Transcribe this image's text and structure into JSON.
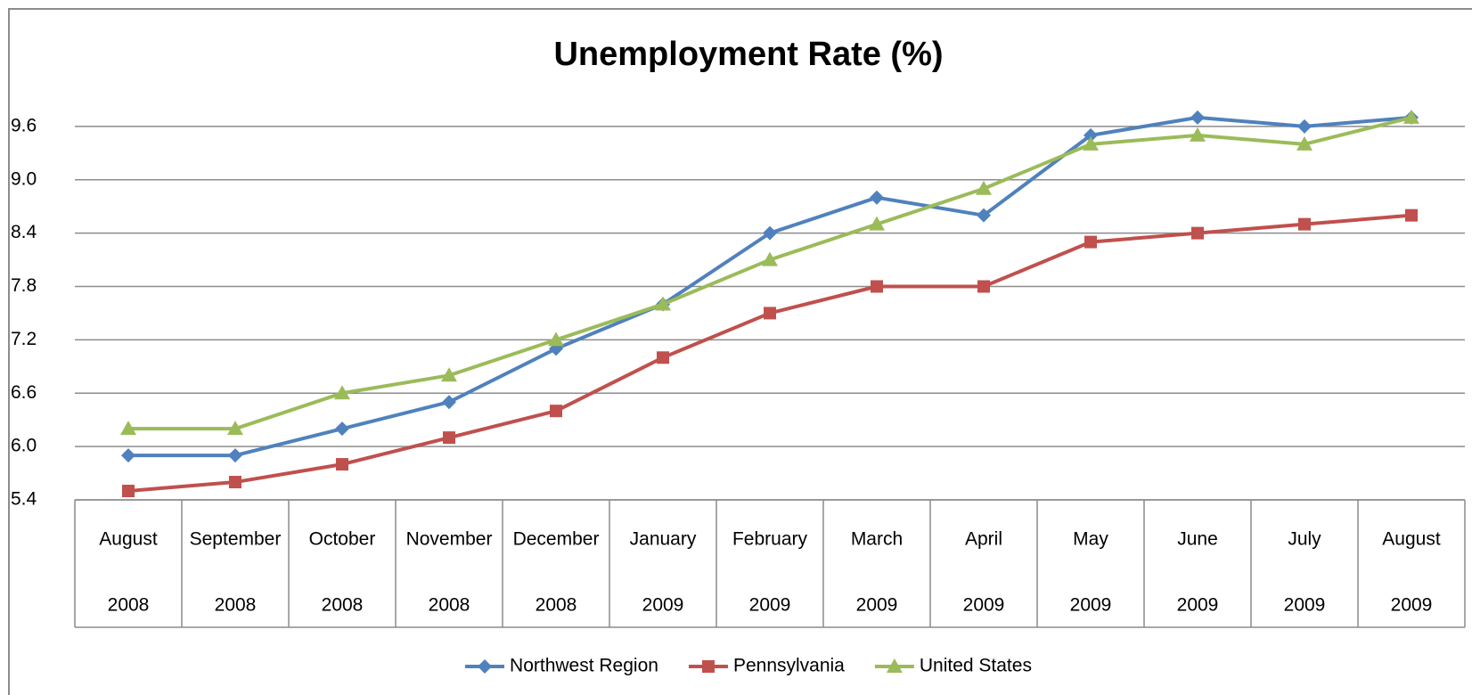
{
  "chart_data": {
    "type": "line",
    "title": "Unemployment Rate (%)",
    "categories": [
      [
        "August",
        "2008"
      ],
      [
        "September",
        "2008"
      ],
      [
        "October",
        "2008"
      ],
      [
        "November",
        "2008"
      ],
      [
        "December",
        "2008"
      ],
      [
        "January",
        "2009"
      ],
      [
        "February",
        "2009"
      ],
      [
        "March",
        "2009"
      ],
      [
        "April",
        "2009"
      ],
      [
        "May",
        "2009"
      ],
      [
        "June",
        "2009"
      ],
      [
        "July",
        "2009"
      ],
      [
        "August",
        "2009"
      ]
    ],
    "series": [
      {
        "name": "Northwest Region",
        "color": "#4f81bd",
        "marker": "diamond",
        "values": [
          5.9,
          5.9,
          6.2,
          6.5,
          7.1,
          7.6,
          8.4,
          8.8,
          8.6,
          9.5,
          9.7,
          9.6,
          9.7
        ]
      },
      {
        "name": "Pennsylvania",
        "color": "#c0504d",
        "marker": "square",
        "values": [
          5.5,
          5.6,
          5.8,
          6.1,
          6.4,
          7.0,
          7.5,
          7.8,
          7.8,
          8.3,
          8.4,
          8.5,
          8.6
        ]
      },
      {
        "name": "United States",
        "color": "#9bbb59",
        "marker": "triangle",
        "values": [
          6.2,
          6.2,
          6.6,
          6.8,
          7.2,
          7.6,
          8.1,
          8.5,
          8.9,
          9.4,
          9.5,
          9.4,
          9.7
        ]
      }
    ],
    "ylim": [
      5.4,
      10.2
    ],
    "yticks": [
      5.4,
      {
        "value": 6,
        "label": "6.0"
      },
      6.6,
      7.2,
      7.8,
      8.4,
      {
        "value": 9,
        "label": "9.0"
      },
      9.6
    ],
    "grid": true,
    "legend": "bottom"
  }
}
